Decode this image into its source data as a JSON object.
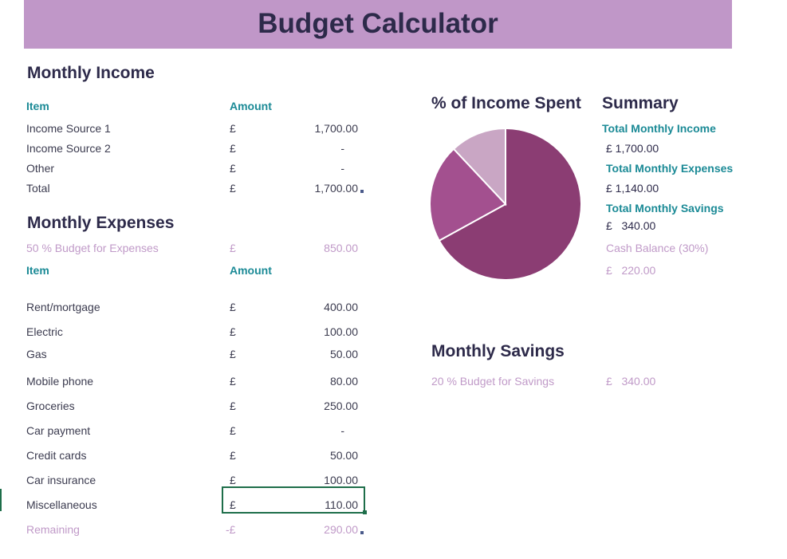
{
  "title": "Budget Calculator",
  "income": {
    "heading": "Monthly Income",
    "col_item": "Item",
    "col_amount": "Amount",
    "rows": [
      {
        "label": "Income Source 1",
        "cur": "£",
        "value": "1,700.00"
      },
      {
        "label": "Income Source 2",
        "cur": "£",
        "value": "-"
      },
      {
        "label": "Other",
        "cur": "£",
        "value": "-"
      },
      {
        "label": "Total",
        "cur": "£",
        "value": "1,700.00"
      }
    ]
  },
  "expenses": {
    "heading": "Monthly Expenses",
    "budget_label": "50 % Budget for Expenses",
    "budget_cur": "£",
    "budget_value": "850.00",
    "col_item": "Item",
    "col_amount": "Amount",
    "rows": [
      {
        "label": "Rent/mortgage",
        "cur": "£",
        "value": "400.00"
      },
      {
        "label": "Electric",
        "cur": "£",
        "value": "100.00"
      },
      {
        "label": "Gas",
        "cur": "£",
        "value": "50.00"
      },
      {
        "label": "Mobile phone",
        "cur": "£",
        "value": "80.00"
      },
      {
        "label": "Groceries",
        "cur": "£",
        "value": "250.00"
      },
      {
        "label": "Car payment",
        "cur": "£",
        "value": "-"
      },
      {
        "label": "Credit cards",
        "cur": "£",
        "value": "50.00"
      },
      {
        "label": "Car insurance",
        "cur": "£",
        "value": "100.00"
      },
      {
        "label": "Miscellaneous",
        "cur": "£",
        "value": "110.00"
      }
    ],
    "remaining_label": "Remaining",
    "remaining_cur": "-£",
    "remaining_value": "290.00"
  },
  "chart_title": "% of Income Spent",
  "chart_data": {
    "type": "pie",
    "title": "% of Income Spent",
    "slices": [
      {
        "value": 67,
        "color": "#8b3d73"
      },
      {
        "value": 21,
        "color": "#a3508f"
      },
      {
        "value": 12,
        "color": "#c9a6c4"
      }
    ]
  },
  "summary": {
    "heading": "Summary",
    "total_income_label": "Total Monthly Income",
    "total_income_value": "£ 1,700.00",
    "total_expenses_label": "Total Monthly Expenses",
    "total_expenses_value": "£ 1,140.00",
    "total_savings_label": "Total Monthly Savings",
    "total_savings_value": "£   340.00",
    "cash_balance_label": "Cash Balance (30%)",
    "cash_balance_value": "£   220.00"
  },
  "savings": {
    "heading": "Monthly Savings",
    "budget_label": "20 % Budget for Savings",
    "budget_value": "£   340.00"
  },
  "colors": {
    "banner": "#c097c8",
    "heading": "#2d2a4a",
    "teal": "#1b8a96",
    "pink": "#c09ac8",
    "selection": "#1e6e4a"
  }
}
